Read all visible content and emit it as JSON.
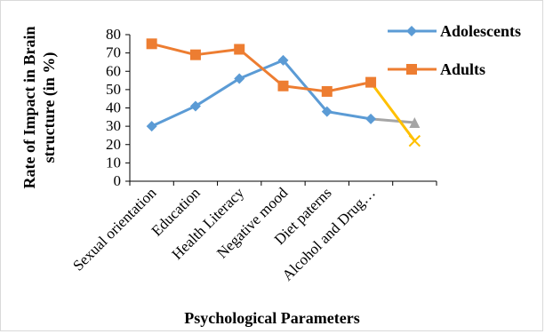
{
  "chart_data": {
    "type": "line",
    "categories": [
      "Sexual orientation",
      "Education",
      "Health Literacy",
      "Negative mood",
      "Diet paterns",
      "Alcohol and Drug…",
      ""
    ],
    "ylabel": "Rate of Impact in Brain structure (in %)",
    "ylabel_lines": [
      "Rate of Impact in Brain",
      "structure (in %)"
    ],
    "xlabel": "Psychological Parameters",
    "ylim": [
      0,
      80
    ],
    "yticks": [
      0,
      10,
      20,
      30,
      40,
      50,
      60,
      70,
      80
    ],
    "grid": false,
    "legend_position": "right",
    "series": [
      {
        "name": "Adolescents",
        "color": "#5b9bd5",
        "marker": "diamond",
        "values": [
          30,
          41,
          56,
          66,
          38,
          34,
          null
        ]
      },
      {
        "name": "Adults",
        "color": "#ed7d31",
        "marker": "square",
        "values": [
          75,
          69,
          72,
          52,
          49,
          54,
          null
        ]
      },
      {
        "name": "",
        "color": "#a5a5a5",
        "marker": "triangle",
        "values": [
          null,
          null,
          null,
          null,
          null,
          34,
          32
        ]
      },
      {
        "name": "",
        "color": "#ffc000",
        "marker": "x",
        "values": [
          null,
          null,
          null,
          null,
          null,
          54,
          22
        ]
      }
    ]
  }
}
